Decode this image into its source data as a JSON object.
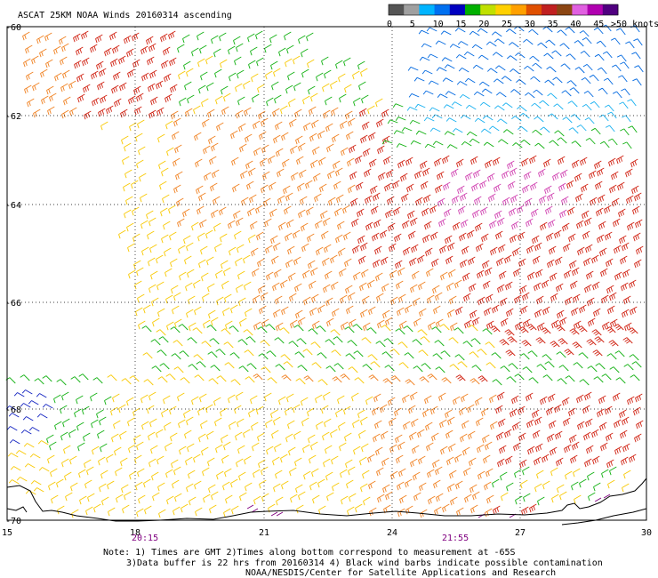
{
  "title": "ASCAT 25KM NOAA Winds 20160314 ascending",
  "colorbar": {
    "colors": [
      "#555555",
      "#a0a0a0",
      "#00b4ff",
      "#0070f0",
      "#0000c0",
      "#00b000",
      "#c0e000",
      "#ffd000",
      "#ffa000",
      "#e05000",
      "#c02020",
      "#8b4513",
      "#e060e0",
      "#b000b0",
      "#500080"
    ],
    "labels": [
      "0",
      "5",
      "10",
      "15",
      "20",
      "25",
      "30",
      "35",
      "40",
      "45",
      ">50 knots"
    ]
  },
  "lat_labels": [
    "-60",
    "-62",
    "-64",
    "-66",
    "-68",
    "-70"
  ],
  "lon_labels": [
    "15",
    "18",
    "21",
    "24",
    "27",
    "30"
  ],
  "time_labels": [
    "20:15",
    "21:55"
  ],
  "notes": [
    "Note: 1) Times are GMT 2)Times along bottom correspond to measurement at -65S",
    "3)Data buffer is 22 hrs from 20160314 4) Black wind barbs indicate possible contamination",
    "NOAA/NESDIS/Center for Satellite Applications and Research"
  ]
}
